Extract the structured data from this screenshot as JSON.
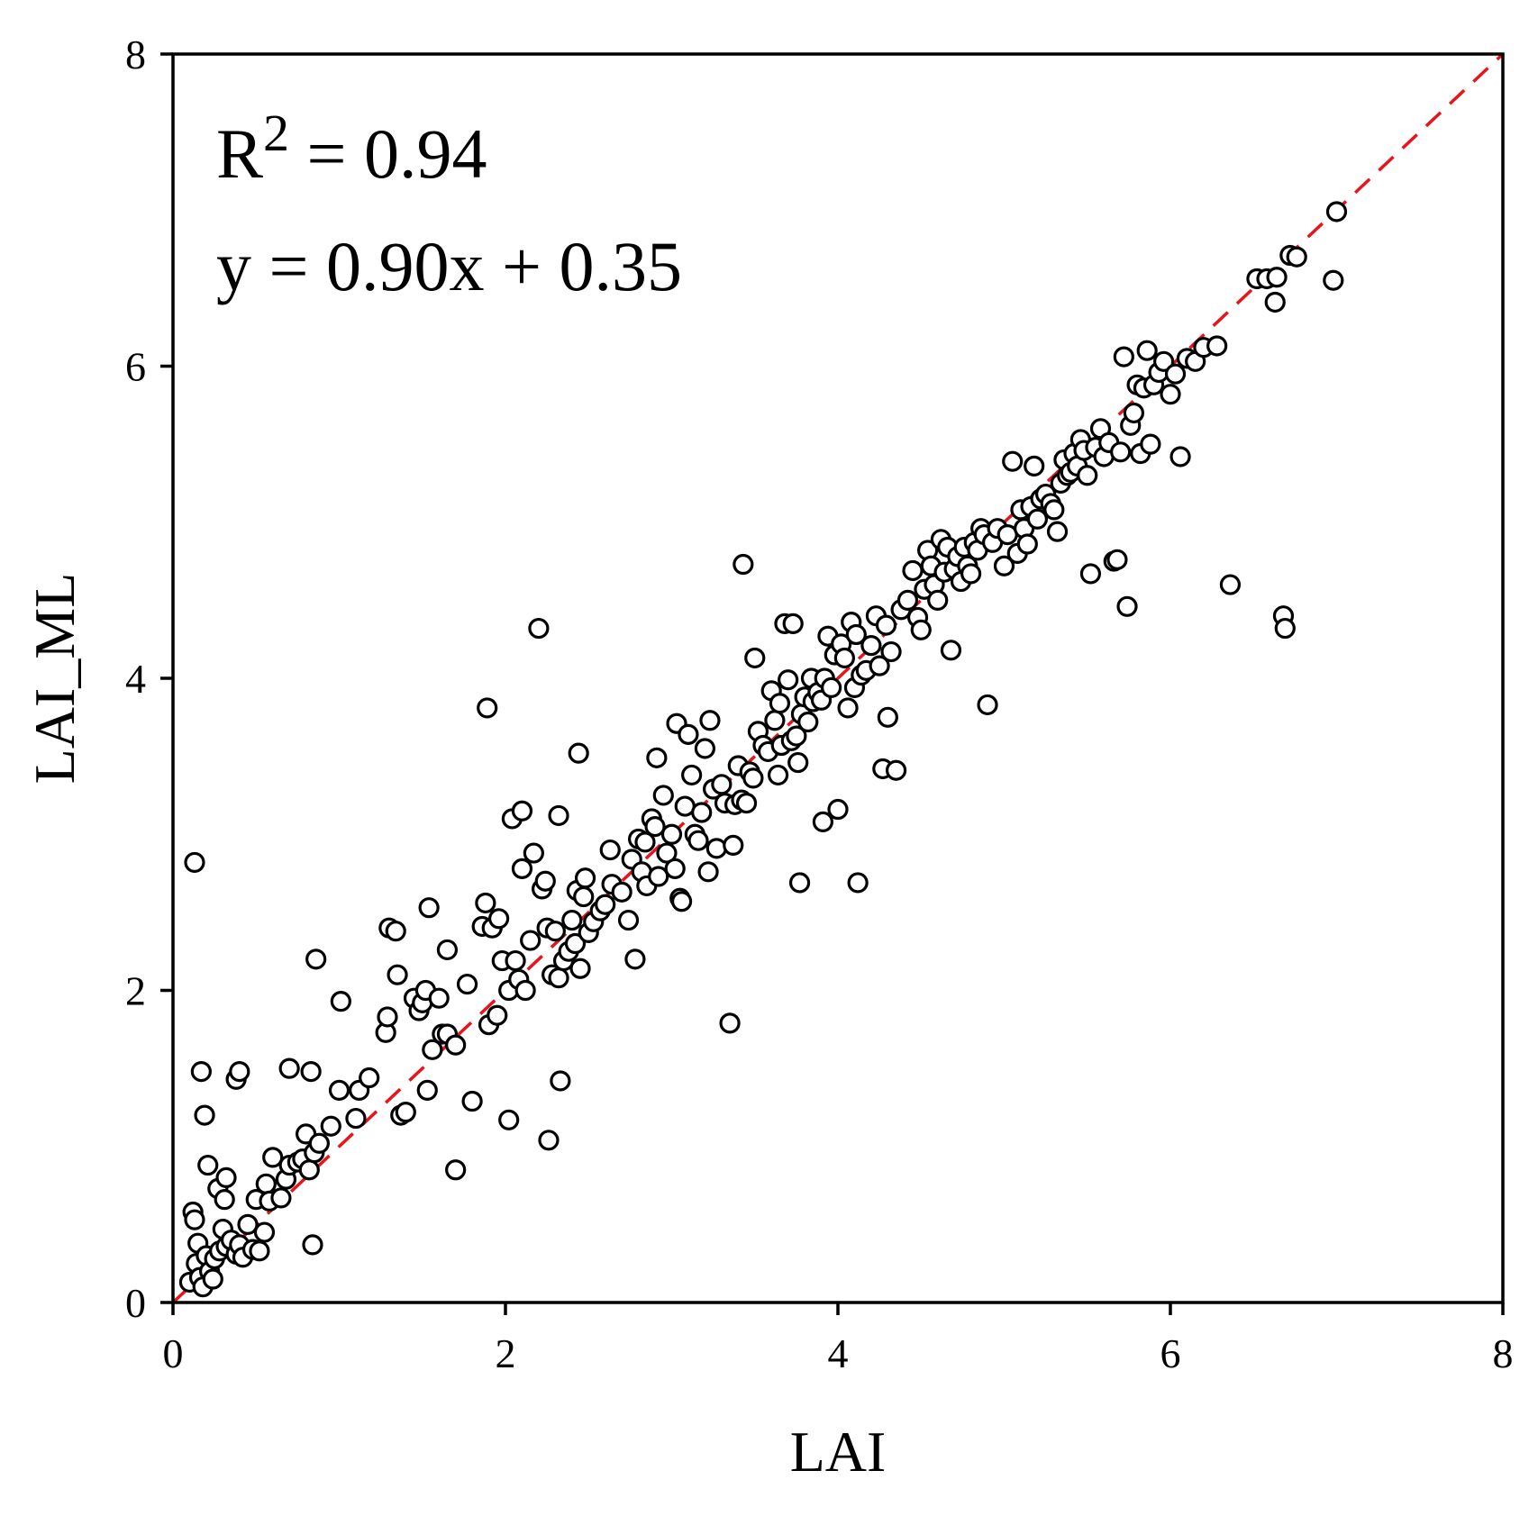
{
  "chart_data": {
    "type": "scatter",
    "title": "",
    "xlabel": "LAI",
    "ylabel": "LAI_ML",
    "xlim": [
      0,
      8
    ],
    "ylim": [
      0,
      8
    ],
    "xticks": [
      "0",
      "2",
      "4",
      "6",
      "8"
    ],
    "yticks": [
      "0",
      "2",
      "4",
      "6",
      "8"
    ],
    "grid": false,
    "annotations": {
      "r2_prefix": "R",
      "r2_sup": "2",
      "r2_value": " = 0.94",
      "equation": "y = 0.90x + 0.35"
    },
    "reference_line": {
      "name": "1:1 line",
      "style": "dashed",
      "color": "#e8141b",
      "x": [
        0,
        8
      ],
      "y": [
        0,
        8
      ]
    },
    "marker": {
      "shape": "open-circle",
      "edge_color": "#000000",
      "face_color": "#ffffff"
    },
    "series": [
      {
        "name": "LAI vs LAI_ML",
        "points": [
          [
            0.1,
            0.13
          ],
          [
            0.12,
            0.58
          ],
          [
            0.13,
            0.53
          ],
          [
            0.14,
            0.25
          ],
          [
            0.15,
            0.38
          ],
          [
            0.16,
            0.16
          ],
          [
            0.18,
            0.1
          ],
          [
            0.2,
            0.3
          ],
          [
            0.22,
            0.2
          ],
          [
            0.24,
            0.15
          ],
          [
            0.25,
            0.28
          ],
          [
            0.28,
            0.33
          ],
          [
            0.3,
            0.47
          ],
          [
            0.32,
            0.36
          ],
          [
            0.35,
            0.4
          ],
          [
            0.38,
            0.31
          ],
          [
            0.4,
            0.37
          ],
          [
            0.42,
            0.29
          ],
          [
            0.45,
            0.5
          ],
          [
            0.48,
            0.34
          ],
          [
            0.5,
            0.66
          ],
          [
            0.52,
            0.33
          ],
          [
            0.55,
            0.45
          ],
          [
            0.56,
            0.76
          ],
          [
            0.58,
            0.65
          ],
          [
            0.6,
            0.93
          ],
          [
            0.65,
            0.67
          ],
          [
            0.68,
            0.79
          ],
          [
            0.7,
            0.88
          ],
          [
            0.75,
            0.9
          ],
          [
            0.78,
            0.92
          ],
          [
            0.8,
            1.08
          ],
          [
            0.82,
            0.85
          ],
          [
            0.85,
            0.96
          ],
          [
            0.88,
            1.02
          ],
          [
            0.13,
            2.82
          ],
          [
            0.17,
            1.48
          ],
          [
            0.19,
            1.2
          ],
          [
            0.21,
            0.88
          ],
          [
            0.27,
            0.73
          ],
          [
            0.31,
            0.66
          ],
          [
            0.32,
            0.8
          ],
          [
            0.38,
            1.43
          ],
          [
            0.4,
            1.48
          ],
          [
            0.7,
            1.5
          ],
          [
            0.83,
            1.48
          ],
          [
            0.84,
            0.37
          ],
          [
            0.86,
            2.2
          ],
          [
            0.95,
            1.13
          ],
          [
            1.0,
            1.36
          ],
          [
            1.01,
            1.93
          ],
          [
            1.1,
            1.18
          ],
          [
            1.12,
            1.36
          ],
          [
            1.18,
            1.44
          ],
          [
            1.28,
            1.73
          ],
          [
            1.29,
            1.83
          ],
          [
            1.3,
            2.4
          ],
          [
            1.34,
            2.38
          ],
          [
            1.35,
            2.1
          ],
          [
            1.37,
            1.2
          ],
          [
            1.4,
            1.22
          ],
          [
            1.45,
            1.95
          ],
          [
            1.48,
            1.87
          ],
          [
            1.5,
            1.92
          ],
          [
            1.52,
            2.0
          ],
          [
            1.53,
            1.36
          ],
          [
            1.54,
            2.53
          ],
          [
            1.56,
            1.62
          ],
          [
            1.6,
            1.95
          ],
          [
            1.62,
            1.72
          ],
          [
            1.65,
            2.26
          ],
          [
            1.65,
            1.72
          ],
          [
            1.7,
            0.85
          ],
          [
            1.7,
            1.65
          ],
          [
            1.77,
            2.04
          ],
          [
            1.8,
            1.29
          ],
          [
            1.86,
            2.41
          ],
          [
            1.88,
            2.56
          ],
          [
            1.89,
            3.81
          ],
          [
            1.9,
            1.78
          ],
          [
            1.92,
            2.4
          ],
          [
            1.95,
            1.84
          ],
          [
            1.96,
            2.46
          ],
          [
            1.98,
            2.19
          ],
          [
            2.02,
            1.17
          ],
          [
            2.02,
            2.0
          ],
          [
            2.04,
            3.1
          ],
          [
            2.06,
            2.19
          ],
          [
            2.08,
            2.07
          ],
          [
            2.1,
            3.15
          ],
          [
            2.1,
            2.78
          ],
          [
            2.12,
            2.0
          ],
          [
            2.15,
            2.32
          ],
          [
            2.17,
            2.88
          ],
          [
            2.2,
            4.32
          ],
          [
            2.22,
            2.65
          ],
          [
            2.24,
            2.7
          ],
          [
            2.25,
            2.4
          ],
          [
            2.26,
            1.04
          ],
          [
            2.28,
            2.1
          ],
          [
            2.3,
            2.38
          ],
          [
            2.32,
            3.12
          ],
          [
            2.32,
            2.08
          ],
          [
            2.33,
            1.42
          ],
          [
            2.35,
            2.19
          ],
          [
            2.38,
            2.25
          ],
          [
            2.4,
            2.45
          ],
          [
            2.42,
            2.3
          ],
          [
            2.43,
            2.64
          ],
          [
            2.44,
            3.52
          ],
          [
            2.45,
            2.14
          ],
          [
            2.47,
            2.6
          ],
          [
            2.48,
            2.72
          ],
          [
            2.5,
            2.37
          ],
          [
            2.53,
            2.44
          ],
          [
            2.57,
            2.51
          ],
          [
            2.6,
            2.55
          ],
          [
            2.63,
            2.9
          ],
          [
            2.64,
            2.68
          ],
          [
            2.7,
            2.63
          ],
          [
            2.74,
            2.45
          ],
          [
            2.76,
            2.84
          ],
          [
            2.78,
            2.2
          ],
          [
            2.8,
            2.97
          ],
          [
            2.82,
            2.76
          ],
          [
            2.84,
            2.95
          ],
          [
            2.85,
            2.67
          ],
          [
            2.88,
            3.1
          ],
          [
            2.9,
            3.05
          ],
          [
            2.91,
            3.49
          ],
          [
            2.92,
            2.73
          ],
          [
            2.95,
            3.25
          ],
          [
            2.97,
            2.88
          ],
          [
            3.0,
            3.0
          ],
          [
            3.02,
            2.78
          ],
          [
            3.03,
            3.71
          ],
          [
            3.05,
            2.59
          ],
          [
            3.06,
            2.57
          ],
          [
            3.08,
            3.18
          ],
          [
            3.1,
            3.64
          ],
          [
            3.12,
            3.38
          ],
          [
            3.14,
            3.0
          ],
          [
            3.16,
            2.96
          ],
          [
            3.18,
            3.14
          ],
          [
            3.2,
            3.55
          ],
          [
            3.22,
            2.76
          ],
          [
            3.23,
            3.73
          ],
          [
            3.25,
            3.29
          ],
          [
            3.27,
            2.91
          ],
          [
            3.3,
            3.32
          ],
          [
            3.32,
            3.2
          ],
          [
            3.35,
            1.79
          ],
          [
            3.37,
            2.93
          ],
          [
            3.38,
            3.19
          ],
          [
            3.4,
            3.44
          ],
          [
            3.42,
            3.22
          ],
          [
            3.43,
            4.73
          ],
          [
            3.45,
            3.2
          ],
          [
            3.47,
            3.4
          ],
          [
            3.49,
            3.36
          ],
          [
            3.5,
            4.13
          ],
          [
            3.52,
            3.66
          ],
          [
            3.55,
            3.57
          ],
          [
            3.58,
            3.53
          ],
          [
            3.6,
            3.92
          ],
          [
            3.62,
            3.73
          ],
          [
            3.64,
            3.38
          ],
          [
            3.65,
            3.84
          ],
          [
            3.66,
            3.57
          ],
          [
            3.68,
            4.35
          ],
          [
            3.7,
            3.99
          ],
          [
            3.72,
            3.6
          ],
          [
            3.73,
            4.35
          ],
          [
            3.75,
            3.63
          ],
          [
            3.76,
            3.46
          ],
          [
            3.77,
            2.69
          ],
          [
            3.78,
            3.77
          ],
          [
            3.8,
            3.88
          ],
          [
            3.82,
            3.72
          ],
          [
            3.84,
            4.0
          ],
          [
            3.85,
            3.85
          ],
          [
            3.88,
            3.91
          ],
          [
            3.9,
            3.86
          ],
          [
            3.91,
            3.08
          ],
          [
            3.92,
            4.0
          ],
          [
            3.94,
            4.27
          ],
          [
            3.96,
            3.94
          ],
          [
            3.98,
            4.15
          ],
          [
            4.0,
            3.16
          ],
          [
            4.02,
            4.22
          ],
          [
            4.04,
            4.13
          ],
          [
            4.06,
            3.81
          ],
          [
            4.08,
            4.36
          ],
          [
            4.1,
            3.94
          ],
          [
            4.11,
            4.28
          ],
          [
            4.12,
            2.69
          ],
          [
            4.14,
            4.02
          ],
          [
            4.17,
            4.05
          ],
          [
            4.2,
            4.21
          ],
          [
            4.23,
            4.4
          ],
          [
            4.25,
            4.08
          ],
          [
            4.27,
            3.42
          ],
          [
            4.29,
            4.34
          ],
          [
            4.3,
            3.75
          ],
          [
            4.32,
            4.17
          ],
          [
            4.35,
            3.41
          ],
          [
            4.38,
            4.44
          ],
          [
            4.42,
            4.5
          ],
          [
            4.45,
            4.69
          ],
          [
            4.48,
            4.39
          ],
          [
            4.5,
            4.31
          ],
          [
            4.52,
            4.57
          ],
          [
            4.54,
            4.82
          ],
          [
            4.56,
            4.72
          ],
          [
            4.58,
            4.6
          ],
          [
            4.6,
            4.5
          ],
          [
            4.62,
            4.89
          ],
          [
            4.64,
            4.68
          ],
          [
            4.66,
            4.84
          ],
          [
            4.68,
            4.18
          ],
          [
            4.7,
            4.7
          ],
          [
            4.72,
            4.78
          ],
          [
            4.74,
            4.62
          ],
          [
            4.76,
            4.84
          ],
          [
            4.78,
            4.72
          ],
          [
            4.8,
            4.67
          ],
          [
            4.82,
            4.87
          ],
          [
            4.84,
            4.82
          ],
          [
            4.86,
            4.96
          ],
          [
            4.88,
            4.92
          ],
          [
            4.9,
            3.83
          ],
          [
            4.93,
            4.87
          ],
          [
            4.96,
            4.96
          ],
          [
            5.0,
            4.72
          ],
          [
            5.02,
            4.92
          ],
          [
            5.05,
            5.39
          ],
          [
            5.08,
            4.8
          ],
          [
            5.1,
            5.08
          ],
          [
            5.12,
            4.96
          ],
          [
            5.14,
            4.86
          ],
          [
            5.16,
            5.1
          ],
          [
            5.18,
            5.36
          ],
          [
            5.2,
            5.02
          ],
          [
            5.22,
            5.15
          ],
          [
            5.25,
            5.18
          ],
          [
            5.28,
            5.12
          ],
          [
            5.3,
            5.08
          ],
          [
            5.32,
            4.94
          ],
          [
            5.34,
            5.25
          ],
          [
            5.36,
            5.4
          ],
          [
            5.38,
            5.3
          ],
          [
            5.4,
            5.32
          ],
          [
            5.42,
            5.44
          ],
          [
            5.44,
            5.36
          ],
          [
            5.46,
            5.53
          ],
          [
            5.48,
            5.46
          ],
          [
            5.5,
            5.3
          ],
          [
            5.52,
            4.67
          ],
          [
            5.55,
            5.48
          ],
          [
            5.58,
            5.6
          ],
          [
            5.6,
            5.42
          ],
          [
            5.63,
            5.51
          ],
          [
            5.66,
            4.75
          ],
          [
            5.68,
            4.76
          ],
          [
            5.7,
            5.45
          ],
          [
            5.72,
            6.06
          ],
          [
            5.74,
            4.46
          ],
          [
            5.76,
            5.62
          ],
          [
            5.78,
            5.7
          ],
          [
            5.8,
            5.88
          ],
          [
            5.82,
            5.44
          ],
          [
            5.84,
            5.86
          ],
          [
            5.86,
            6.1
          ],
          [
            5.88,
            5.5
          ],
          [
            5.9,
            5.88
          ],
          [
            5.93,
            5.96
          ],
          [
            5.96,
            6.03
          ],
          [
            6.0,
            5.82
          ],
          [
            6.03,
            5.95
          ],
          [
            6.06,
            5.42
          ],
          [
            6.1,
            6.05
          ],
          [
            6.15,
            6.03
          ],
          [
            6.2,
            6.12
          ],
          [
            6.28,
            6.13
          ],
          [
            6.36,
            4.6
          ],
          [
            6.52,
            6.56
          ],
          [
            6.58,
            6.56
          ],
          [
            6.63,
            6.41
          ],
          [
            6.64,
            6.57
          ],
          [
            6.68,
            4.4
          ],
          [
            6.69,
            4.32
          ],
          [
            6.72,
            6.71
          ],
          [
            6.76,
            6.7
          ],
          [
            6.98,
            6.55
          ],
          [
            7.0,
            6.99
          ]
        ]
      }
    ]
  }
}
